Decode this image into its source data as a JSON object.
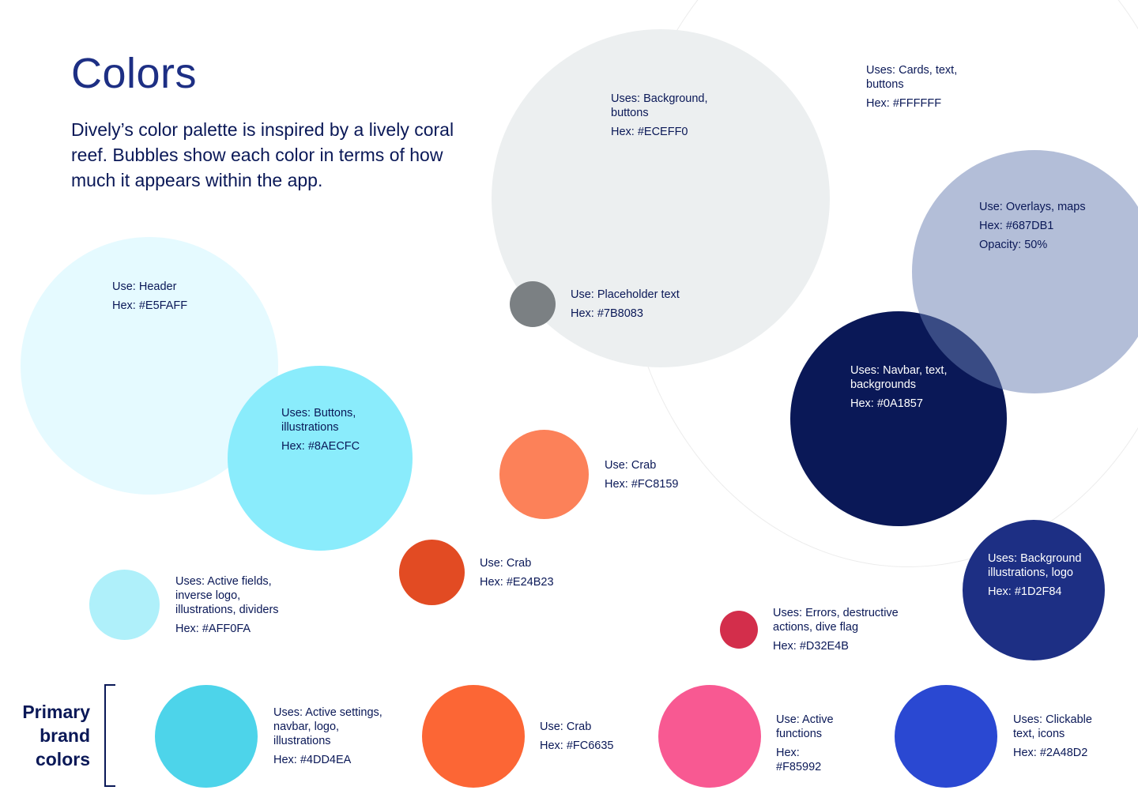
{
  "title": "Colors",
  "intro": "Dively’s color palette is inspired by a lively coral reef. Bubbles show each color in terms of how much it appears within the app.",
  "brand": {
    "heading_line1": "Primary",
    "heading_line2": "brand",
    "heading_line3": "colors"
  },
  "colors": {
    "white": {
      "use": "Uses: Cards, text, buttons",
      "hex": "Hex: #FFFFFF",
      "color": "#FFFFFF"
    },
    "eceff0": {
      "use": "Uses: Background, buttons",
      "hex": "Hex: #ECEFF0",
      "color": "#ECEFF0"
    },
    "placeholder": {
      "use": "Use: Placeholder text",
      "hex": "Hex: #7B8083",
      "color": "#7B8083"
    },
    "overlay": {
      "use": "Use: Overlays, maps",
      "hex": "Hex: #687DB1",
      "extra": "Opacity: 50%",
      "color": "#687DB1"
    },
    "navbar": {
      "use": "Uses: Navbar, text, backgrounds",
      "hex": "Hex: #0A1857",
      "color": "#0A1857"
    },
    "header": {
      "use": "Use: Header",
      "hex": "Hex: #E5FAFF",
      "color": "#E5FAFF"
    },
    "buttons": {
      "use": "Uses: Buttons, illustrations",
      "hex": "Hex: #8AECFC",
      "color": "#8AECFC"
    },
    "crab1": {
      "use": "Use: Crab",
      "hex": "Hex: #FC8159",
      "color": "#FC8159"
    },
    "crab2": {
      "use": "Use: Crab",
      "hex": "Hex: #E24B23",
      "color": "#E24B23"
    },
    "active_fields": {
      "use": "Uses: Active fields, inverse logo, illustrations, dividers",
      "hex": "Hex: #AFF0FA",
      "color": "#AFF0FA"
    },
    "errors": {
      "use": "Uses: Errors, destructive actions, dive flag",
      "hex": "Hex: #D32E4B",
      "color": "#D32E4B"
    },
    "bg_illus": {
      "use": "Uses: Background illustrations, logo",
      "hex": "Hex: #1D2F84",
      "color": "#1D2F84"
    },
    "active_settings": {
      "use": "Uses: Active settings, navbar, logo, illustrations",
      "hex": "Hex: #4DD4EA",
      "color": "#4DD4EA"
    },
    "crab3": {
      "use": "Use: Crab",
      "hex": "Hex: #FC6635",
      "color": "#FC6635"
    },
    "active_functions": {
      "use": "Use: Active functions",
      "hex": "Hex: #F85992",
      "color": "#F85992"
    },
    "clickable": {
      "use": "Uses: Clickable text, icons",
      "hex": "Hex: #2A48D2",
      "color": "#2A48D2"
    }
  }
}
